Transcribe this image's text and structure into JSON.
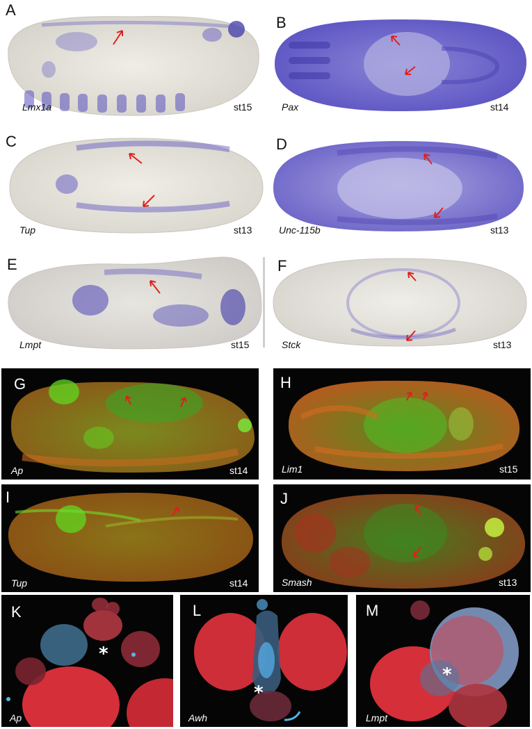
{
  "panels": [
    {
      "letter": "A",
      "gene": "Lmx1a",
      "stage": "st15"
    },
    {
      "letter": "B",
      "gene": "Pax",
      "stage": "st14"
    },
    {
      "letter": "C",
      "gene": "Tup",
      "stage": "st13"
    },
    {
      "letter": "D",
      "gene": "Unc-115b",
      "stage": "st13"
    },
    {
      "letter": "E",
      "gene": "Lmpt",
      "stage": "st15"
    },
    {
      "letter": "F",
      "gene": "Stck",
      "stage": "st13"
    },
    {
      "letter": "G",
      "gene": "Ap",
      "stage": "st14"
    },
    {
      "letter": "H",
      "gene": "Lim1",
      "stage": "st15"
    },
    {
      "letter": "I",
      "gene": "Tup",
      "stage": "st14"
    },
    {
      "letter": "J",
      "gene": "Smash",
      "stage": "st13"
    },
    {
      "letter": "K",
      "gene": "Ap",
      "marker": "*"
    },
    {
      "letter": "L",
      "gene": "Awh",
      "marker": "*"
    },
    {
      "letter": "M",
      "gene": "Lmpt",
      "marker": "*"
    }
  ],
  "colors": {
    "ish_background": "#ffffff",
    "embryo_tissue": "#e6e3d8",
    "stain_blue": "#4b43b8",
    "arrow_red": "#e0201c",
    "fluor_background": "#050505",
    "fluor_green": "#5fd820",
    "fluor_orange": "#c46a1e",
    "disc_red": "#e0323c",
    "disc_cyan": "#52b8e8"
  }
}
